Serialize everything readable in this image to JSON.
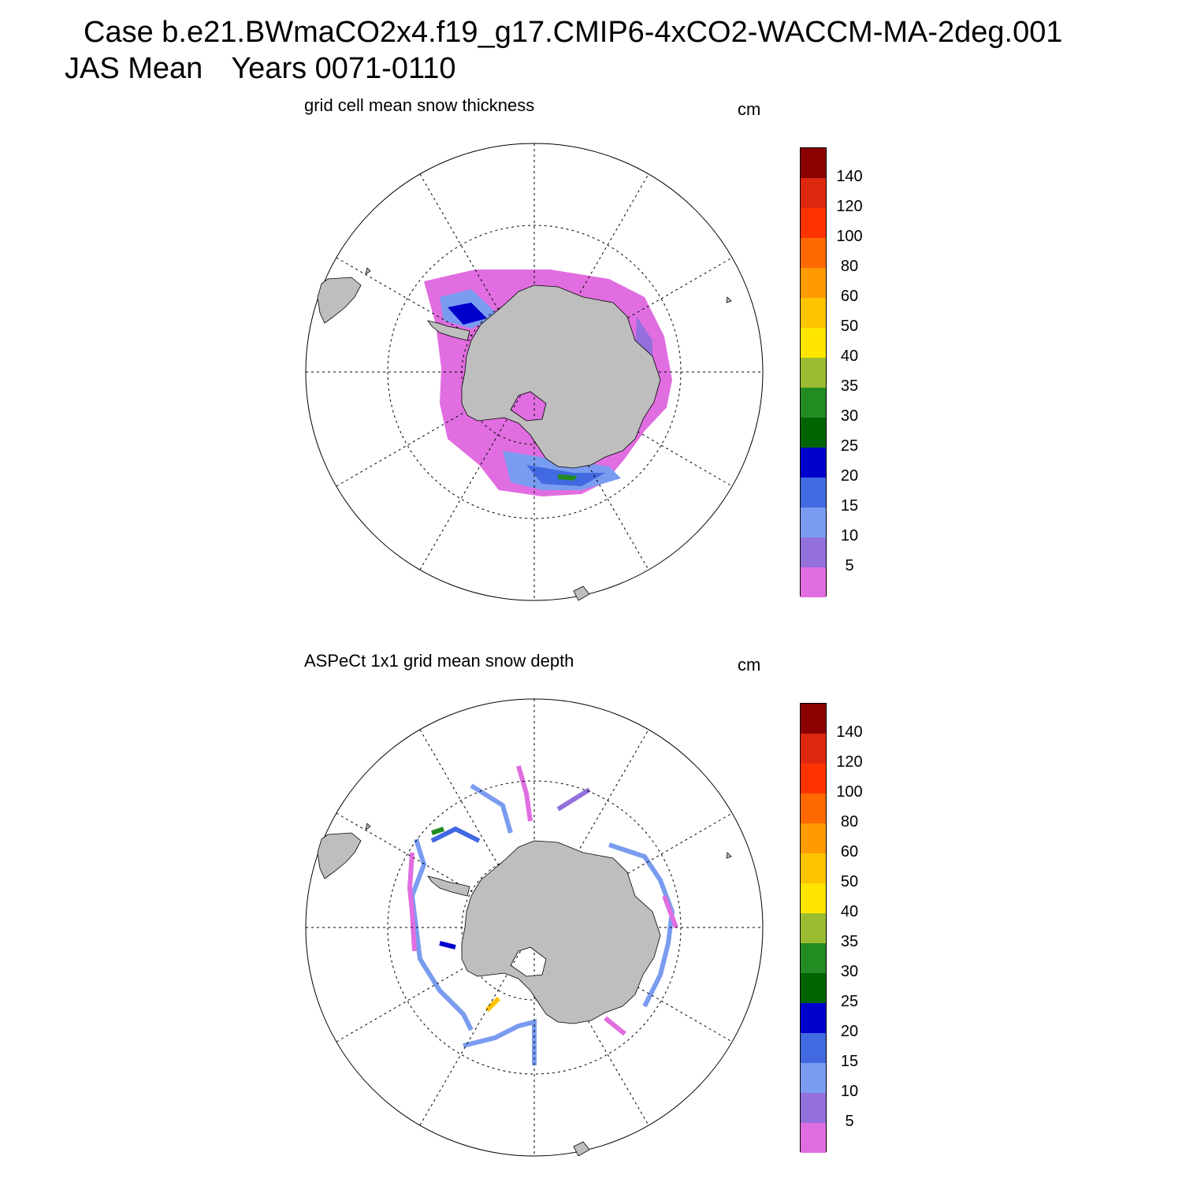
{
  "header": {
    "case_line": "Case b.e21.BWmaCO2x4.f19_g17.CMIP6-4xCO2-WACCM-MA-2deg.001",
    "season": "JAS Mean",
    "years": "Years 0071-0110"
  },
  "panels": [
    {
      "title": "grid cell mean snow thickness",
      "units": "cm"
    },
    {
      "title": "ASPeCt 1x1 grid mean snow depth",
      "units": "cm"
    }
  ],
  "colorbar": {
    "labels": [
      "140",
      "120",
      "100",
      "80",
      "60",
      "50",
      "40",
      "35",
      "30",
      "25",
      "20",
      "15",
      "10",
      "5"
    ],
    "colors": [
      "#8b0000",
      "#dd2810",
      "#ff3300",
      "#ff6a00",
      "#ff9a00",
      "#ffc400",
      "#ffe500",
      "#9bbc30",
      "#228b22",
      "#006400",
      "#0000cd",
      "#4169e1",
      "#7a9cf0",
      "#9370db",
      "#e06ee0"
    ]
  },
  "map": {
    "land_color": "#bebebe",
    "projection": "south polar stereographic",
    "region": "Antarctica / Southern Ocean"
  }
}
